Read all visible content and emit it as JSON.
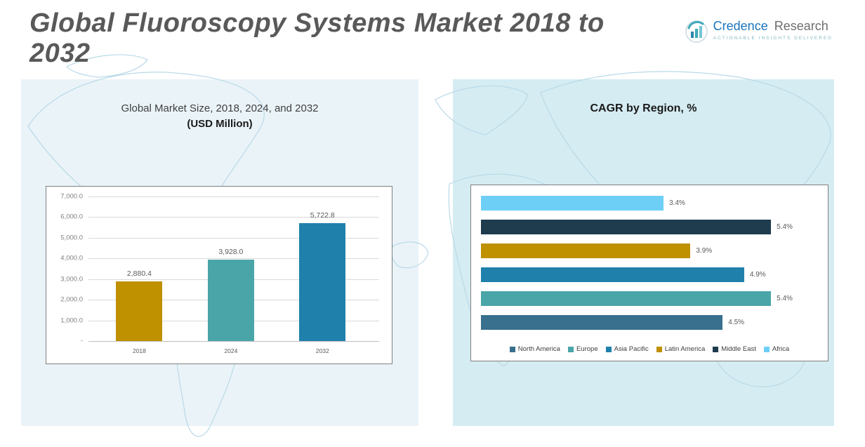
{
  "header": {
    "title": "Global Fluoroscopy Systems Market 2018 to 2032",
    "logo": {
      "brand_primary": "Credence",
      "brand_secondary": "Research",
      "tagline": "Actionable Insights Delivered"
    }
  },
  "colors": {
    "accent_gold": "#BF9000",
    "accent_teal": "#4AA5A8",
    "accent_blue": "#2080AC",
    "accent_navy": "#1F3B4E",
    "accent_sky": "#6ECFF6",
    "accent_steel": "#38708E",
    "panel_left_bg": "#EAF3F8",
    "panel_right_bg": "#D5ECF2",
    "title_gray": "#595959"
  },
  "chart_data": [
    {
      "type": "bar",
      "title": "Global Market Size, 2018, 2024, and 2032",
      "subtitle": "(USD Million)",
      "categories": [
        "2018",
        "2024",
        "2032"
      ],
      "values": [
        2880.4,
        3928.0,
        5722.8
      ],
      "value_labels": [
        "2,880.4",
        "3,928.0",
        "5,722.8"
      ],
      "bar_colors": [
        "#BF9000",
        "#4AA5A8",
        "#2080AC"
      ],
      "ylim": [
        0,
        7000
      ],
      "ytick_labels": [
        "7,000.0",
        "6,000.0",
        "5,000.0",
        "4,000.0",
        "3,000.0",
        "2,000.0",
        "1,000.0",
        "-"
      ],
      "grid": true,
      "legend": "none"
    },
    {
      "type": "bar-horizontal",
      "title": "CAGR by Region, %",
      "categories_top_to_bottom": [
        "Africa",
        "Middle East",
        "Latin America",
        "Asia Pacific",
        "Europe",
        "North America"
      ],
      "values": [
        3.4,
        5.4,
        3.9,
        4.9,
        5.4,
        4.5
      ],
      "value_labels": [
        "3.4%",
        "5.4%",
        "3.9%",
        "4.9%",
        "5.4%",
        "4.5%"
      ],
      "bar_colors": [
        "#6ECFF6",
        "#1F3B4E",
        "#BF9000",
        "#2080AC",
        "#4AA5A8",
        "#38708E"
      ],
      "xlim": [
        0,
        6.3
      ],
      "grid": false,
      "legend_position": "bottom",
      "legend": [
        {
          "label": "North America",
          "color": "#38708E"
        },
        {
          "label": "Europe",
          "color": "#4AA5A8"
        },
        {
          "label": "Asia Pacific",
          "color": "#2080AC"
        },
        {
          "label": "Latin America",
          "color": "#BF9000"
        },
        {
          "label": "Middle East",
          "color": "#1F3B4E"
        },
        {
          "label": "Africa",
          "color": "#6ECFF6"
        }
      ]
    }
  ]
}
